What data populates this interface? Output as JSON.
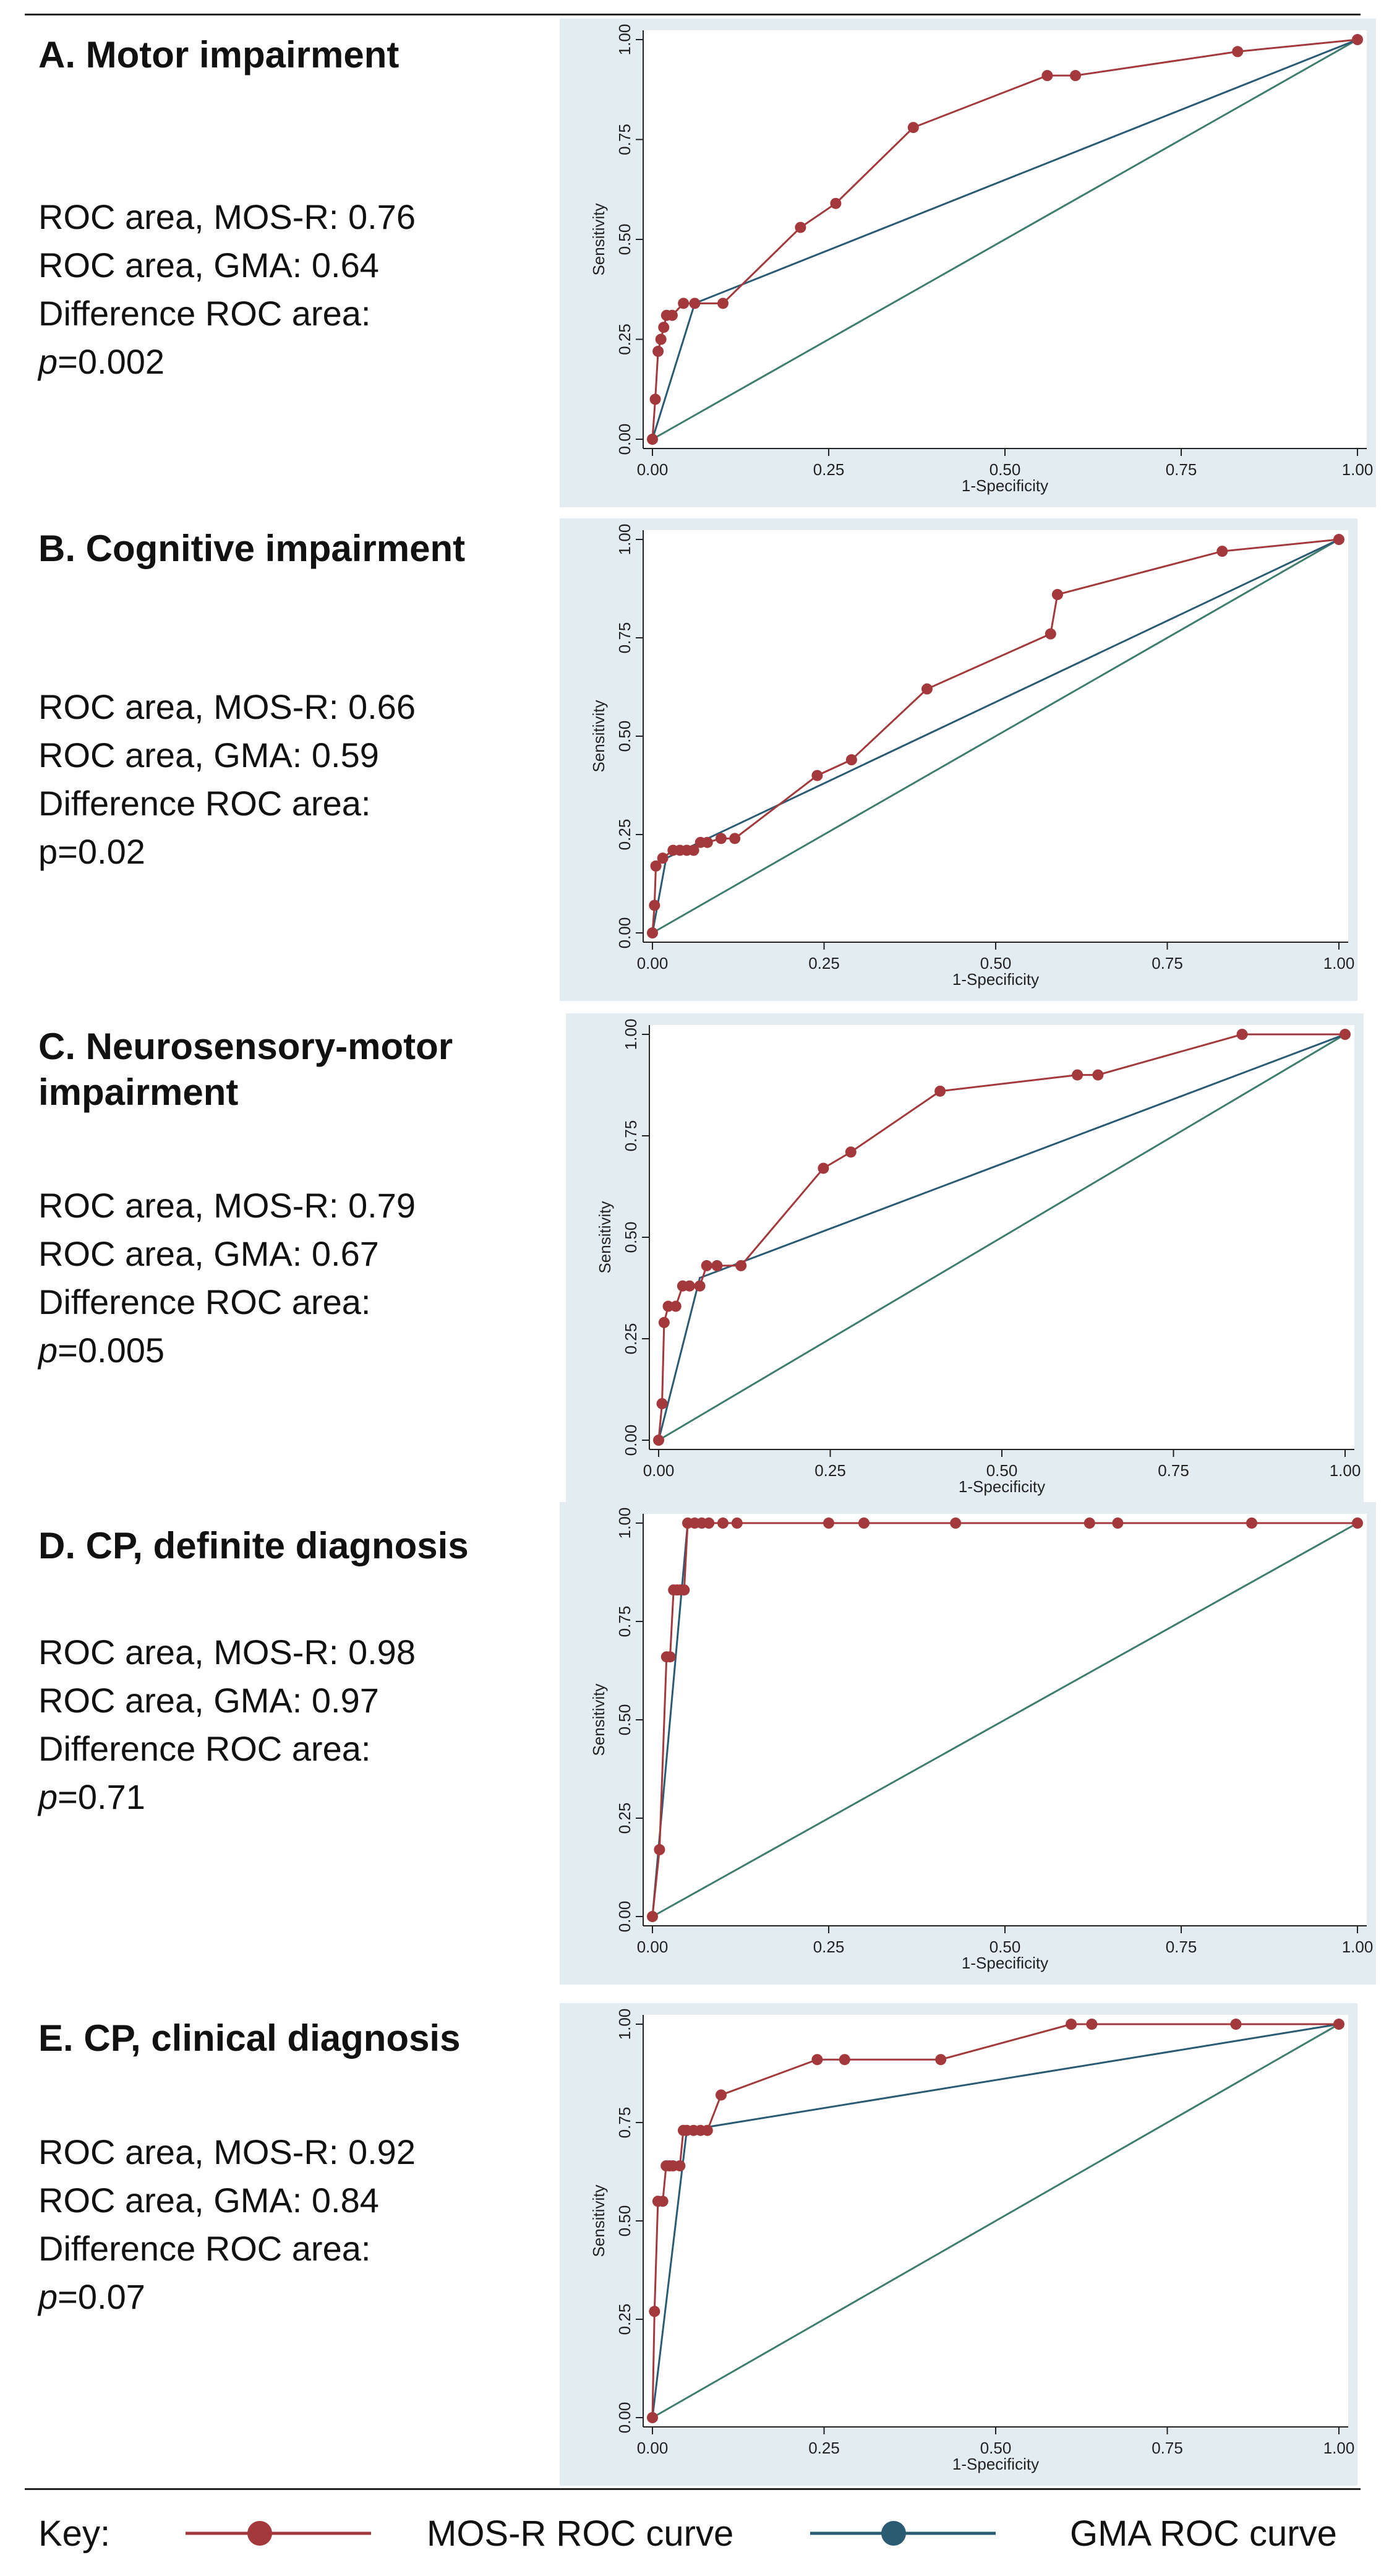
{
  "chart_data": [
    {
      "type": "line",
      "panel": "A",
      "title": "A.  Motor impairment",
      "stats": [
        "ROC area, MOS-R: 0.76",
        "ROC area, GMA: 0.64",
        "Difference ROC area:"
      ],
      "p_prefix": "p",
      "p_value": "=0.002",
      "p_italic": true,
      "xlabel": "1-Specificity",
      "ylabel": "Sensitivity",
      "xlim": [
        0,
        1
      ],
      "ylim": [
        0,
        1
      ],
      "xticks": [
        "0.00",
        "0.25",
        "0.50",
        "0.75",
        "1.00"
      ],
      "yticks": [
        "0.00",
        "0.25",
        "0.50",
        "0.75",
        "1.00"
      ],
      "series": [
        {
          "name": "MOS-R ROC curve",
          "color": "#a3393c",
          "x": [
            0,
            0.004,
            0.008,
            0.012,
            0.016,
            0.02,
            0.028,
            0.044,
            0.06,
            0.1,
            0.21,
            0.26,
            0.37,
            0.56,
            0.6,
            0.83,
            1.0
          ],
          "y": [
            0,
            0.1,
            0.22,
            0.25,
            0.28,
            0.31,
            0.31,
            0.34,
            0.34,
            0.34,
            0.53,
            0.59,
            0.78,
            0.91,
            0.91,
            0.97,
            1.0
          ]
        },
        {
          "name": "GMA ROC curve",
          "color": "#2b5b73",
          "x": [
            0,
            0.06,
            1.0
          ],
          "y": [
            0,
            0.34,
            1.0
          ]
        },
        {
          "name": "reference",
          "color": "#3f7d6e",
          "x": [
            0,
            1
          ],
          "y": [
            0,
            1
          ]
        }
      ]
    },
    {
      "type": "line",
      "panel": "B",
      "title": "B. Cognitive impairment",
      "stats": [
        "ROC area, MOS-R: 0.66",
        "ROC area, GMA: 0.59",
        "Difference ROC area:"
      ],
      "p_prefix": "p",
      "p_value": "=0.02",
      "p_italic": false,
      "xlabel": "1-Specificity",
      "ylabel": "Sensitivity",
      "xlim": [
        0,
        1
      ],
      "ylim": [
        0,
        1
      ],
      "xticks": [
        "0.00",
        "0.25",
        "0.50",
        "0.75",
        "1.00"
      ],
      "yticks": [
        "0.00",
        "0.25",
        "0.50",
        "0.75",
        "1.00"
      ],
      "series": [
        {
          "name": "MOS-R ROC curve",
          "color": "#a3393c",
          "x": [
            0,
            0.003,
            0.005,
            0.015,
            0.03,
            0.04,
            0.05,
            0.06,
            0.07,
            0.08,
            0.1,
            0.12,
            0.24,
            0.29,
            0.4,
            0.58,
            0.59,
            0.83,
            1.0
          ],
          "y": [
            0,
            0.07,
            0.17,
            0.19,
            0.21,
            0.21,
            0.21,
            0.21,
            0.23,
            0.23,
            0.24,
            0.24,
            0.4,
            0.44,
            0.62,
            0.76,
            0.86,
            0.97,
            1.0
          ]
        },
        {
          "name": "GMA ROC curve",
          "color": "#2b5b73",
          "x": [
            0,
            0.02,
            1.0
          ],
          "y": [
            0,
            0.19,
            1.0
          ]
        },
        {
          "name": "reference",
          "color": "#3f7d6e",
          "x": [
            0,
            1
          ],
          "y": [
            0,
            1
          ]
        }
      ]
    },
    {
      "type": "line",
      "panel": "C",
      "title": "C. Neurosensory-motor impairment",
      "stats": [
        "ROC area, MOS-R: 0.79",
        "ROC area, GMA: 0.67",
        "Difference ROC area:"
      ],
      "p_prefix": "p",
      "p_value": "=0.005",
      "p_italic": true,
      "xlabel": "1-Specificity",
      "ylabel": "Sensitivity",
      "xlim": [
        0,
        1
      ],
      "ylim": [
        0,
        1
      ],
      "xticks": [
        "0.00",
        "0.25",
        "0.50",
        "0.75",
        "1.00"
      ],
      "yticks": [
        "0.00",
        "0.25",
        "0.50",
        "0.75",
        "1.00"
      ],
      "series": [
        {
          "name": "MOS-R ROC curve",
          "color": "#a3393c",
          "x": [
            0,
            0.005,
            0.008,
            0.014,
            0.025,
            0.035,
            0.045,
            0.06,
            0.07,
            0.085,
            0.12,
            0.24,
            0.28,
            0.41,
            0.61,
            0.64,
            0.85,
            1.0
          ],
          "y": [
            0,
            0.09,
            0.29,
            0.33,
            0.33,
            0.38,
            0.38,
            0.38,
            0.43,
            0.43,
            0.43,
            0.67,
            0.71,
            0.86,
            0.9,
            0.9,
            1.0,
            1.0
          ]
        },
        {
          "name": "GMA ROC curve",
          "color": "#2b5b73",
          "x": [
            0,
            0.06,
            1.0
          ],
          "y": [
            0,
            0.4,
            1.0
          ]
        },
        {
          "name": "reference",
          "color": "#3f7d6e",
          "x": [
            0,
            1
          ],
          "y": [
            0,
            1
          ]
        }
      ]
    },
    {
      "type": "line",
      "panel": "D",
      "title": "D. CP, definite diagnosis",
      "stats": [
        "ROC area, MOS-R: 0.98",
        "ROC area, GMA: 0.97",
        "Difference ROC area:"
      ],
      "p_prefix": "p",
      "p_value": "=0.71",
      "p_italic": true,
      "xlabel": "1-Specificity",
      "ylabel": "Sensitivity",
      "xlim": [
        0,
        1
      ],
      "ylim": [
        0,
        1
      ],
      "xticks": [
        "0.00",
        "0.25",
        "0.50",
        "0.75",
        "1.00"
      ],
      "yticks": [
        "0.00",
        "0.25",
        "0.50",
        "0.75",
        "1.00"
      ],
      "series": [
        {
          "name": "MOS-R ROC curve",
          "color": "#a3393c",
          "x": [
            0,
            0.01,
            0.02,
            0.025,
            0.03,
            0.035,
            0.04,
            0.045,
            0.05,
            0.06,
            0.07,
            0.08,
            0.1,
            0.12,
            0.25,
            0.3,
            0.43,
            0.62,
            0.66,
            0.85,
            1.0
          ],
          "y": [
            0,
            0.17,
            0.66,
            0.66,
            0.83,
            0.83,
            0.83,
            0.83,
            1.0,
            1.0,
            1.0,
            1.0,
            1.0,
            1.0,
            1.0,
            1.0,
            1.0,
            1.0,
            1.0,
            1.0,
            1.0
          ]
        },
        {
          "name": "GMA ROC curve",
          "color": "#2b5b73",
          "x": [
            0,
            0.05,
            1.0
          ],
          "y": [
            0,
            1.0,
            1.0
          ]
        },
        {
          "name": "reference",
          "color": "#3f7d6e",
          "x": [
            0,
            1
          ],
          "y": [
            0,
            1
          ]
        }
      ]
    },
    {
      "type": "line",
      "panel": "E",
      "title": "E. CP, clinical diagnosis",
      "stats": [
        "ROC area, MOS-R: 0.92",
        "ROC area, GMA: 0.84",
        "Difference ROC area:"
      ],
      "p_prefix": "p",
      "p_value": "=0.07",
      "p_italic": true,
      "xlabel": "1-Specificity",
      "ylabel": "Sensitivity",
      "xlim": [
        0,
        1
      ],
      "ylim": [
        0,
        1
      ],
      "xticks": [
        "0.00",
        "0.25",
        "0.50",
        "0.75",
        "1.00"
      ],
      "yticks": [
        "0.00",
        "0.25",
        "0.50",
        "0.75",
        "1.00"
      ],
      "series": [
        {
          "name": "MOS-R ROC curve",
          "color": "#a3393c",
          "x": [
            0,
            0.003,
            0.008,
            0.015,
            0.02,
            0.025,
            0.03,
            0.04,
            0.045,
            0.05,
            0.06,
            0.07,
            0.08,
            0.1,
            0.24,
            0.28,
            0.42,
            0.61,
            0.64,
            0.85,
            1.0
          ],
          "y": [
            0,
            0.27,
            0.55,
            0.55,
            0.64,
            0.64,
            0.64,
            0.64,
            0.73,
            0.73,
            0.73,
            0.73,
            0.73,
            0.82,
            0.91,
            0.91,
            0.91,
            1.0,
            1.0,
            1.0,
            1.0
          ]
        },
        {
          "name": "GMA ROC curve",
          "color": "#2b5b73",
          "x": [
            0,
            0.05,
            1.0
          ],
          "y": [
            0,
            0.73,
            1.0
          ]
        },
        {
          "name": "reference",
          "color": "#3f7d6e",
          "x": [
            0,
            1
          ],
          "y": [
            0,
            1
          ]
        }
      ]
    }
  ],
  "key": {
    "label": "Key:",
    "mosr_label": "MOS-R ROC curve",
    "gma_label": "GMA ROC curve",
    "mosr_color": "#a3393c",
    "gma_color": "#2b5b73"
  }
}
